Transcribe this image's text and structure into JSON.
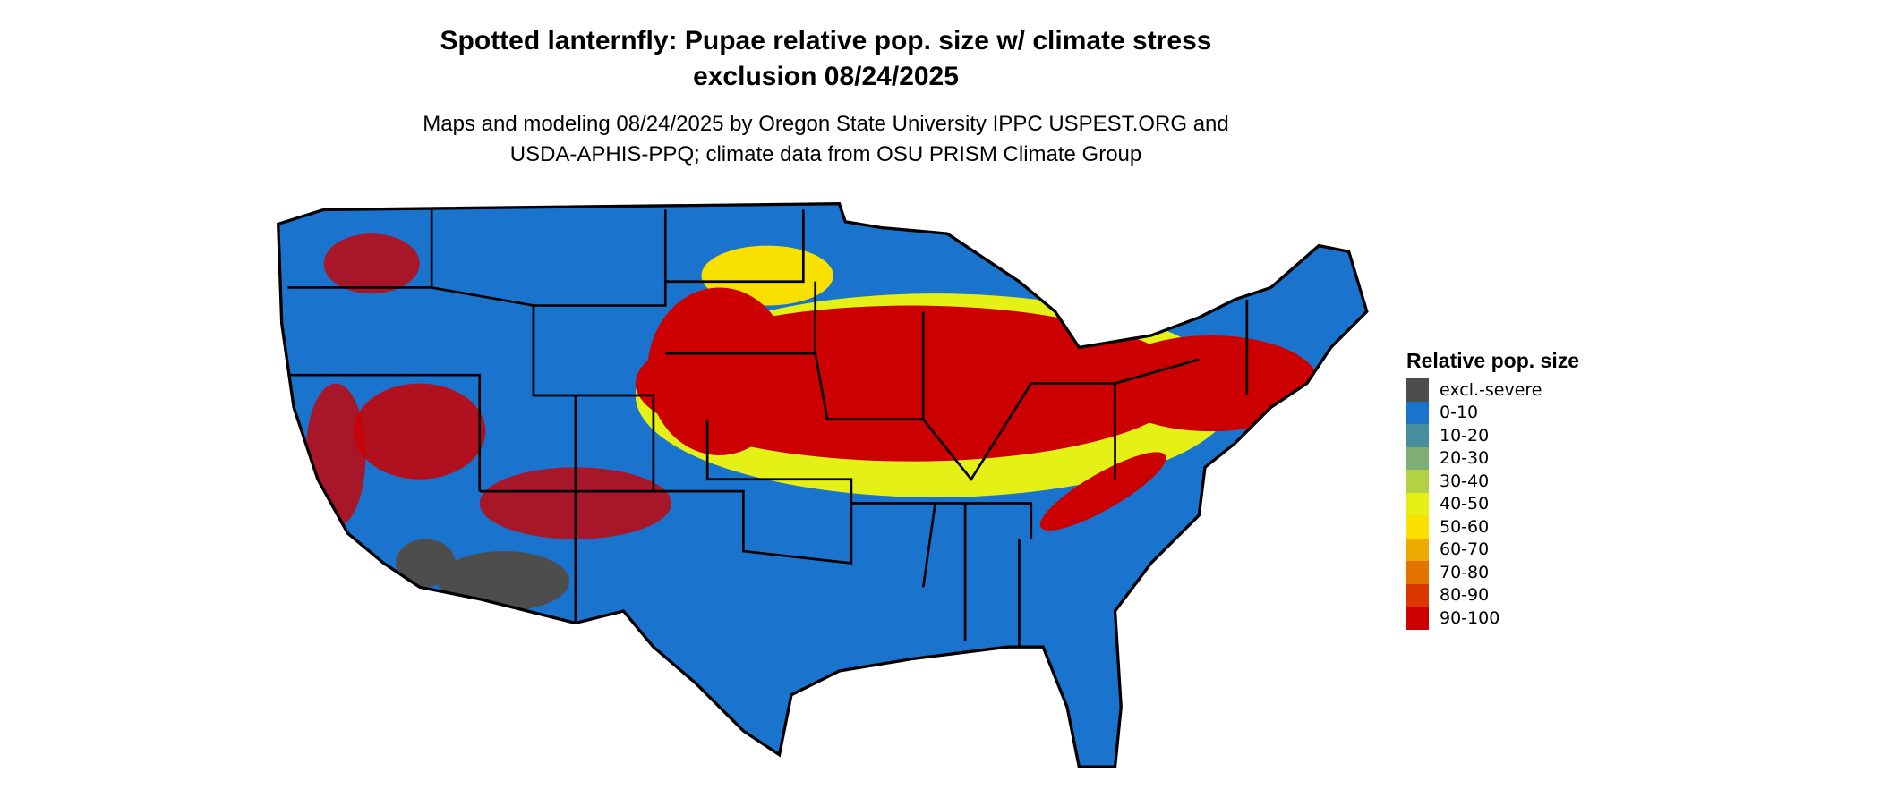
{
  "title": {
    "line1": "Spotted lanternfly: Pupae relative pop. size w/ climate stress",
    "line2": "exclusion 08/24/2025"
  },
  "subtitle": {
    "line1": "Maps and modeling 08/24/2025 by Oregon State University IPPC USPEST.ORG and",
    "line2": "USDA-APHIS-PPQ; climate data from OSU PRISM Climate Group"
  },
  "legend": {
    "title": "Relative pop. size",
    "items": [
      {
        "label": "excl.-severe",
        "color": "#4d4d4d"
      },
      {
        "label": "0-10",
        "color": "#1a73cc"
      },
      {
        "label": "10-20",
        "color": "#478f9e"
      },
      {
        "label": "20-30",
        "color": "#7fae72"
      },
      {
        "label": "30-40",
        "color": "#b2d145"
      },
      {
        "label": "40-50",
        "color": "#e4f016"
      },
      {
        "label": "50-60",
        "color": "#f8e000"
      },
      {
        "label": "60-70",
        "color": "#eeaa00"
      },
      {
        "label": "70-80",
        "color": "#e47400"
      },
      {
        "label": "80-90",
        "color": "#da3800"
      },
      {
        "label": "90-100",
        "color": "#cc0000"
      }
    ]
  }
}
